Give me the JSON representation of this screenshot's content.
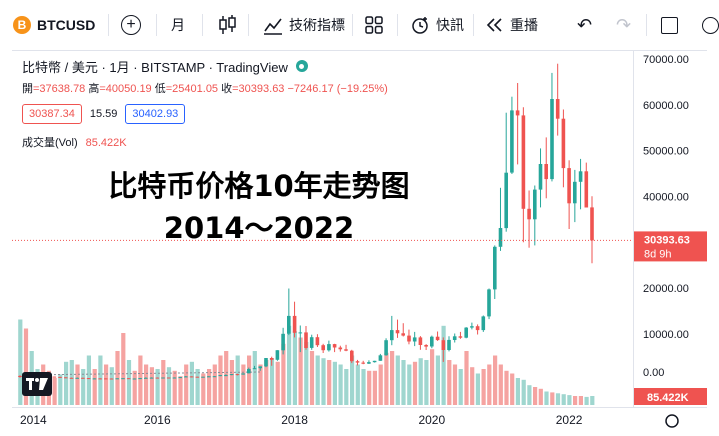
{
  "toolbar": {
    "symbol_icon": "bitcoin-icon",
    "symbol_glyph": "B",
    "symbol": "BTCUSD",
    "add_glyph": "+",
    "interval": "月",
    "indicators": "技術指標",
    "alert": "快訊",
    "replay": "重播",
    "undo_glyph": "↶",
    "redo_glyph": "↷"
  },
  "legend": {
    "title": "比特幣 / 美元 · 1月 · BITSTAMP · TradingView",
    "ohlc": {
      "open_label": "開",
      "open": "=37638.78",
      "high_label": "高",
      "high": "=40050.19",
      "low_label": "低",
      "low": "=25401.05",
      "close_label": "收",
      "close": "=30393.63",
      "change": "−7246.17 (−19.25%)"
    },
    "bid": "30387.34",
    "spread": "15.59",
    "ask": "30402.93",
    "volume_label": "成交量(Vol)",
    "volume_value": "85.422K"
  },
  "overlay": {
    "line1": "比特币价格10年走势图",
    "line2": "2014～2022"
  },
  "price_axis": {
    "labels": [
      "70000.00",
      "60000.00",
      "50000.00",
      "40000.00",
      "20000.00",
      "10000.00",
      "0.00"
    ],
    "current_price": "30393.63",
    "countdown": "8d 9h",
    "volume_tag": "85.422K"
  },
  "time_axis": {
    "labels": [
      "2014",
      "2016",
      "2018",
      "2020",
      "2022"
    ]
  },
  "colors": {
    "up": "#26a69a",
    "down": "#ef5350",
    "vol_up": "#9fd6cf",
    "vol_down": "#f5a3a1",
    "accent_blue": "#2962ff"
  },
  "chart_data": {
    "type": "candlestick",
    "note_series": "BTCUSD monthly, approximate visual reconstruction",
    "ylim": [
      -6000,
      72000
    ],
    "current_price": 30393.63,
    "candles": [
      [
        800,
        950,
        400,
        550
      ],
      [
        550,
        700,
        450,
        600
      ],
      [
        600,
        650,
        400,
        450
      ],
      [
        450,
        500,
        350,
        440
      ],
      [
        440,
        600,
        420,
        620
      ],
      [
        620,
        680,
        550,
        640
      ],
      [
        640,
        650,
        560,
        580
      ],
      [
        580,
        600,
        450,
        480
      ],
      [
        480,
        500,
        350,
        380
      ],
      [
        380,
        420,
        280,
        340
      ],
      [
        340,
        450,
        300,
        380
      ],
      [
        380,
        400,
        300,
        320
      ],
      [
        320,
        330,
        170,
        220
      ],
      [
        220,
        260,
        200,
        250
      ],
      [
        250,
        300,
        230,
        245
      ],
      [
        245,
        260,
        215,
        235
      ],
      [
        235,
        245,
        220,
        230
      ],
      [
        230,
        260,
        220,
        263
      ],
      [
        263,
        300,
        260,
        285
      ],
      [
        285,
        290,
        200,
        230
      ],
      [
        230,
        240,
        220,
        236
      ],
      [
        236,
        320,
        235,
        311
      ],
      [
        311,
        500,
        300,
        378
      ],
      [
        378,
        470,
        340,
        430
      ],
      [
        430,
        460,
        350,
        370
      ],
      [
        370,
        440,
        360,
        436
      ],
      [
        436,
        440,
        380,
        416
      ],
      [
        416,
        470,
        410,
        448
      ],
      [
        448,
        550,
        440,
        531
      ],
      [
        531,
        780,
        530,
        675
      ],
      [
        675,
        700,
        470,
        624
      ],
      [
        624,
        630,
        550,
        574
      ],
      [
        574,
        620,
        590,
        610
      ],
      [
        610,
        720,
        600,
        700
      ],
      [
        700,
        750,
        690,
        740
      ],
      [
        740,
        980,
        740,
        965
      ],
      [
        965,
        1150,
        750,
        970
      ],
      [
        970,
        1200,
        940,
        1190
      ],
      [
        1190,
        1280,
        900,
        1080
      ],
      [
        1080,
        1350,
        1080,
        1350
      ],
      [
        1350,
        2600,
        1350,
        2300
      ],
      [
        2300,
        2980,
        2300,
        2480
      ],
      [
        2480,
        2900,
        1900,
        2870
      ],
      [
        2870,
        4500,
        2700,
        4700
      ],
      [
        4700,
        5000,
        3000,
        4300
      ],
      [
        4300,
        6400,
        4100,
        6400
      ],
      [
        6400,
        11300,
        5500,
        10000
      ],
      [
        10000,
        19900,
        9700,
        13900
      ],
      [
        13900,
        17000,
        9200,
        10200
      ],
      [
        10200,
        11800,
        6000,
        10300
      ],
      [
        10300,
        11700,
        6500,
        6900
      ],
      [
        6900,
        9800,
        6500,
        9240
      ],
      [
        9240,
        9900,
        7100,
        7500
      ],
      [
        7500,
        7800,
        5800,
        6400
      ],
      [
        6400,
        8500,
        6100,
        7750
      ],
      [
        7750,
        7800,
        6000,
        7000
      ],
      [
        7000,
        7400,
        6100,
        6600
      ],
      [
        6600,
        7600,
        6200,
        6300
      ],
      [
        6300,
        6500,
        3600,
        4000
      ],
      [
        4000,
        4300,
        3100,
        3700
      ],
      [
        3700,
        4100,
        3350,
        3450
      ],
      [
        3450,
        4200,
        3400,
        3800
      ],
      [
        3800,
        4100,
        3700,
        4100
      ],
      [
        4100,
        5600,
        4100,
        5300
      ],
      [
        5300,
        9000,
        5200,
        8600
      ],
      [
        8600,
        13900,
        7500,
        10800
      ],
      [
        10800,
        13100,
        9100,
        10100
      ],
      [
        10100,
        12300,
        9400,
        9600
      ],
      [
        9600,
        10900,
        7700,
        8300
      ],
      [
        8300,
        10400,
        7300,
        9200
      ],
      [
        9200,
        9500,
        6500,
        7550
      ],
      [
        7550,
        7750,
        6450,
        7200
      ],
      [
        7200,
        9600,
        6850,
        9350
      ],
      [
        9350,
        10500,
        8450,
        8600
      ],
      [
        8600,
        9200,
        3850,
        6450
      ],
      [
        6450,
        9450,
        6150,
        8650
      ],
      [
        8650,
        10050,
        8100,
        9450
      ],
      [
        9450,
        10400,
        8900,
        9150
      ],
      [
        9150,
        11450,
        9000,
        11350
      ],
      [
        11350,
        12450,
        10950,
        11650
      ],
      [
        11650,
        12050,
        9850,
        10800
      ],
      [
        10800,
        14000,
        10400,
        13800
      ],
      [
        13800,
        19900,
        13200,
        19700
      ],
      [
        19700,
        29300,
        17600,
        29000
      ],
      [
        29000,
        41900,
        28100,
        33100
      ],
      [
        33100,
        58300,
        32300,
        45200
      ],
      [
        45200,
        61800,
        44900,
        58800
      ],
      [
        58800,
        64800,
        47000,
        57700
      ],
      [
        57700,
        59500,
        30000,
        37300
      ],
      [
        37300,
        41300,
        28800,
        35000
      ],
      [
        35000,
        42400,
        29300,
        41500
      ],
      [
        41500,
        50500,
        37600,
        47100
      ],
      [
        47100,
        52900,
        39600,
        43800
      ],
      [
        43800,
        67000,
        43300,
        61300
      ],
      [
        61300,
        69000,
        53300,
        57000
      ],
      [
        57000,
        59000,
        42000,
        46200
      ],
      [
        46200,
        47900,
        32900,
        38500
      ],
      [
        38500,
        45800,
        34400,
        43200
      ],
      [
        43200,
        48200,
        37200,
        45500
      ],
      [
        45500,
        47400,
        37700,
        37600
      ],
      [
        37600,
        40050,
        25400,
        30390
      ]
    ],
    "volumes": [
      [
        95,
        1
      ],
      [
        85,
        0
      ],
      [
        60,
        1
      ],
      [
        40,
        1
      ],
      [
        45,
        0
      ],
      [
        38,
        0
      ],
      [
        30,
        0
      ],
      [
        34,
        1
      ],
      [
        48,
        1
      ],
      [
        50,
        1
      ],
      [
        45,
        0
      ],
      [
        40,
        1
      ],
      [
        55,
        1
      ],
      [
        40,
        0
      ],
      [
        55,
        1
      ],
      [
        45,
        0
      ],
      [
        42,
        1
      ],
      [
        60,
        0
      ],
      [
        80,
        0
      ],
      [
        50,
        1
      ],
      [
        38,
        0
      ],
      [
        55,
        0
      ],
      [
        45,
        0
      ],
      [
        42,
        0
      ],
      [
        40,
        1
      ],
      [
        50,
        0
      ],
      [
        42,
        1
      ],
      [
        38,
        0
      ],
      [
        32,
        0
      ],
      [
        45,
        0
      ],
      [
        48,
        1
      ],
      [
        40,
        1
      ],
      [
        35,
        0
      ],
      [
        40,
        0
      ],
      [
        45,
        0
      ],
      [
        55,
        0
      ],
      [
        60,
        0
      ],
      [
        50,
        0
      ],
      [
        55,
        1
      ],
      [
        45,
        0
      ],
      [
        55,
        0
      ],
      [
        60,
        1
      ],
      [
        45,
        0
      ],
      [
        50,
        0
      ],
      [
        52,
        1
      ],
      [
        48,
        0
      ],
      [
        68,
        0
      ],
      [
        88,
        1
      ],
      [
        82,
        1
      ],
      [
        75,
        0
      ],
      [
        70,
        1
      ],
      [
        60,
        0
      ],
      [
        55,
        1
      ],
      [
        52,
        1
      ],
      [
        50,
        0
      ],
      [
        48,
        1
      ],
      [
        45,
        1
      ],
      [
        40,
        1
      ],
      [
        55,
        1
      ],
      [
        45,
        1
      ],
      [
        40,
        1
      ],
      [
        38,
        0
      ],
      [
        38,
        0
      ],
      [
        45,
        0
      ],
      [
        58,
        0
      ],
      [
        60,
        0
      ],
      [
        55,
        1
      ],
      [
        50,
        1
      ],
      [
        45,
        1
      ],
      [
        48,
        0
      ],
      [
        52,
        1
      ],
      [
        50,
        1
      ],
      [
        62,
        0
      ],
      [
        55,
        1
      ],
      [
        88,
        1
      ],
      [
        50,
        0
      ],
      [
        45,
        0
      ],
      [
        40,
        1
      ],
      [
        60,
        0
      ],
      [
        42,
        0
      ],
      [
        35,
        1
      ],
      [
        40,
        0
      ],
      [
        45,
        0
      ],
      [
        55,
        0
      ],
      [
        45,
        0
      ],
      [
        38,
        0
      ],
      [
        35,
        0
      ],
      [
        30,
        1
      ],
      [
        28,
        1
      ],
      [
        22,
        1
      ],
      [
        20,
        0
      ],
      [
        18,
        0
      ],
      [
        15,
        1
      ],
      [
        14,
        0
      ],
      [
        13,
        1
      ],
      [
        12,
        1
      ],
      [
        11,
        1
      ],
      [
        10,
        0
      ],
      [
        10,
        0
      ],
      [
        9,
        1
      ],
      [
        10,
        1
      ]
    ]
  }
}
